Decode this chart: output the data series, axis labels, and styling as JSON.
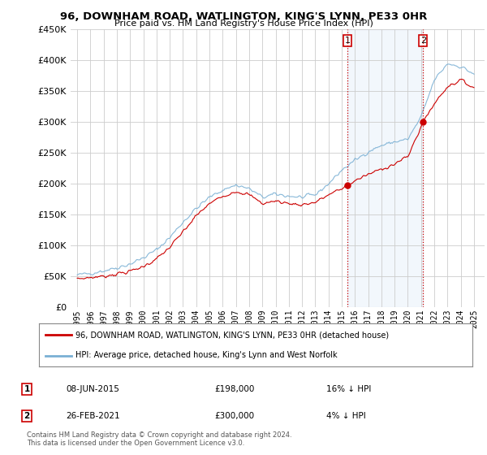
{
  "title": "96, DOWNHAM ROAD, WATLINGTON, KING'S LYNN, PE33 0HR",
  "subtitle": "Price paid vs. HM Land Registry's House Price Index (HPI)",
  "legend_house": "96, DOWNHAM ROAD, WATLINGTON, KING'S LYNN, PE33 0HR (detached house)",
  "legend_hpi": "HPI: Average price, detached house, King's Lynn and West Norfolk",
  "footnote": "Contains HM Land Registry data © Crown copyright and database right 2024.\nThis data is licensed under the Open Government Licence v3.0.",
  "sale1_label": "1",
  "sale1_date": "08-JUN-2015",
  "sale1_price": "£198,000",
  "sale1_hpi": "16% ↓ HPI",
  "sale2_label": "2",
  "sale2_date": "26-FEB-2021",
  "sale2_price": "£300,000",
  "sale2_hpi": "4% ↓ HPI",
  "house_color": "#cc0000",
  "hpi_color": "#7ab0d4",
  "bg_color": "#ffffff",
  "plot_bg_color": "#ffffff",
  "grid_color": "#cccccc",
  "ylim": [
    0,
    450000
  ],
  "yticks": [
    0,
    50000,
    100000,
    150000,
    200000,
    250000,
    300000,
    350000,
    400000,
    450000
  ],
  "sale1_x": 2015.44,
  "sale1_y": 198000,
  "sale2_x": 2021.15,
  "sale2_y": 300000,
  "xlim_left": 1994.5,
  "xlim_right": 2025.8
}
